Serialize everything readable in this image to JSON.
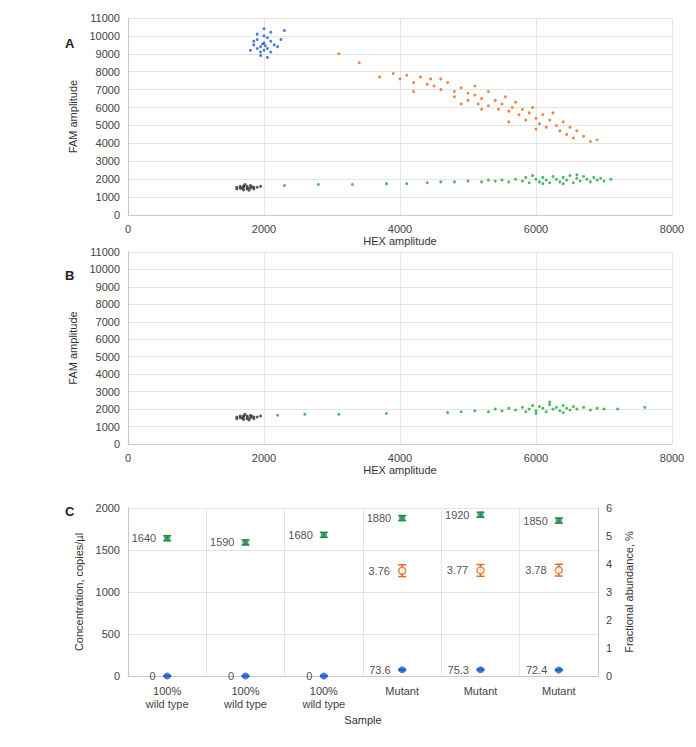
{
  "chart_data": [
    {
      "type": "scatter",
      "title": "A",
      "xlabel": "HEX amplitude",
      "ylabel": "FAM amplitude",
      "xlim": [
        0,
        8000
      ],
      "xticks": [
        0,
        2000,
        4000,
        6000,
        8000
      ],
      "ylim": [
        0,
        11000
      ],
      "yticks": [
        0,
        1000,
        2000,
        3000,
        4000,
        5000,
        6000,
        7000,
        8000,
        9000,
        10000,
        11000
      ],
      "grid": true,
      "series": [
        {
          "color": "#333333",
          "marker": "circle",
          "x": [
            1600,
            1650,
            1700,
            1750,
            1800,
            1850,
            1700,
            1750,
            1800,
            1650,
            1900,
            1600,
            1720,
            1780,
            1850,
            1950,
            1680,
            1820,
            1760,
            1700
          ],
          "values": [
            1450,
            1500,
            1550,
            1600,
            1500,
            1550,
            1400,
            1450,
            1650,
            1600,
            1550,
            1550,
            1700,
            1380,
            1450,
            1600,
            1480,
            1580,
            1520,
            1620
          ]
        },
        {
          "color": "#1f5fd0",
          "marker": "circle",
          "x": [
            1800,
            1850,
            1900,
            1950,
            2000,
            2050,
            2100,
            2000,
            1950,
            2050,
            2150,
            1900,
            2000,
            1850,
            2100,
            2200,
            1950,
            2050,
            2000,
            1900,
            2250,
            2100,
            1980,
            2020,
            2300
          ],
          "values": [
            9200,
            9500,
            9800,
            9400,
            9600,
            9300,
            9700,
            10000,
            9100,
            9900,
            9500,
            9300,
            9200,
            9700,
            10200,
            9400,
            8900,
            8800,
            10400,
            10100,
            9800,
            9100,
            9550,
            9450,
            10300
          ]
        },
        {
          "color": "#e36a1e",
          "marker": "circle",
          "x": [
            3100,
            3400,
            3700,
            3900,
            4000,
            4100,
            4200,
            4300,
            4400,
            4450,
            4500,
            4600,
            4700,
            4800,
            4800,
            4900,
            5000,
            5000,
            5100,
            5150,
            5200,
            5300,
            5300,
            5400,
            5450,
            5500,
            5550,
            5600,
            5650,
            5700,
            5750,
            5800,
            5850,
            5900,
            5950,
            6000,
            6050,
            6100,
            6150,
            6200,
            6250,
            6300,
            6350,
            6400,
            6450,
            6500,
            6550,
            6600,
            6700,
            6800,
            6900,
            5600,
            4200,
            4600,
            5100,
            6000,
            5200,
            4900
          ],
          "values": [
            9000,
            8500,
            7700,
            7900,
            7600,
            7800,
            7400,
            7700,
            7300,
            7600,
            7200,
            7000,
            7400,
            6900,
            6600,
            7100,
            6800,
            6400,
            6700,
            6200,
            6500,
            6900,
            6100,
            6400,
            5900,
            6200,
            6600,
            5800,
            6000,
            6300,
            5600,
            5900,
            5300,
            5700,
            6000,
            5400,
            5100,
            5600,
            4900,
            5300,
            5700,
            5000,
            4700,
            5200,
            4500,
            4900,
            4300,
            4700,
            4400,
            4100,
            4200,
            5200,
            6900,
            7600,
            7200,
            4800,
            5900,
            6200
          ]
        },
        {
          "color": "#24a83a",
          "marker": "circle",
          "x": [
            2300,
            2800,
            3300,
            3800,
            4100,
            4400,
            4600,
            4800,
            5000,
            5200,
            5300,
            5400,
            5500,
            5600,
            5700,
            5800,
            5850,
            5900,
            6000,
            6050,
            6100,
            6150,
            6200,
            6250,
            6300,
            6350,
            6400,
            6450,
            6500,
            6550,
            6600,
            6650,
            6700,
            6750,
            6800,
            6850,
            6900,
            6950,
            7000,
            7100,
            6100,
            6400,
            5950,
            6600
          ],
          "values": [
            1650,
            1700,
            1700,
            1750,
            1750,
            1800,
            1850,
            1850,
            1900,
            1850,
            1950,
            1900,
            1950,
            1850,
            2000,
            1900,
            2100,
            1800,
            2000,
            1850,
            2100,
            1950,
            1800,
            2150,
            2000,
            1850,
            2100,
            1950,
            2200,
            1800,
            2050,
            1900,
            2150,
            2000,
            1850,
            2100,
            1950,
            2050,
            1900,
            2000,
            1750,
            1750,
            2200,
            2250
          ]
        }
      ]
    },
    {
      "type": "scatter",
      "title": "B",
      "xlabel": "HEX amplitude",
      "ylabel": "FAM amplitude",
      "xlim": [
        0,
        8000
      ],
      "xticks": [
        0,
        2000,
        4000,
        6000,
        8000
      ],
      "ylim": [
        0,
        11000
      ],
      "yticks": [
        0,
        1000,
        2000,
        3000,
        4000,
        5000,
        6000,
        7000,
        8000,
        9000,
        10000,
        11000
      ],
      "grid": true,
      "series": [
        {
          "color": "#333333",
          "marker": "circle",
          "x": [
            1600,
            1650,
            1700,
            1750,
            1800,
            1850,
            1700,
            1750,
            1800,
            1650,
            1900,
            1600,
            1720,
            1780,
            1850,
            1950,
            1680,
            1820,
            1760,
            1700
          ],
          "values": [
            1450,
            1500,
            1550,
            1600,
            1500,
            1550,
            1400,
            1450,
            1650,
            1600,
            1550,
            1550,
            1700,
            1380,
            1450,
            1600,
            1480,
            1580,
            1520,
            1620
          ]
        },
        {
          "color": "#24a83a",
          "marker": "circle",
          "x": [
            2200,
            2600,
            3100,
            3800,
            4700,
            4900,
            5100,
            5300,
            5400,
            5500,
            5600,
            5700,
            5800,
            5850,
            5900,
            5950,
            6000,
            6050,
            6100,
            6150,
            6200,
            6250,
            6300,
            6350,
            6400,
            6450,
            6500,
            6550,
            6600,
            6700,
            6800,
            6900,
            7000,
            7200,
            7600,
            6200,
            6000,
            6400
          ],
          "values": [
            1650,
            1700,
            1700,
            1750,
            1800,
            1850,
            1900,
            1850,
            2000,
            1900,
            2050,
            1950,
            2100,
            1850,
            2000,
            2200,
            1900,
            2150,
            2050,
            1850,
            2250,
            2000,
            2100,
            1900,
            2200,
            2050,
            1950,
            2150,
            2000,
            2100,
            1950,
            2050,
            2000,
            2000,
            2100,
            2400,
            1750,
            1800
          ]
        }
      ]
    },
    {
      "type": "dot",
      "title": "C",
      "xlabel": "Sample",
      "ylabel": "Concentration, copies/µl",
      "y2label": "Fractional abundance, %",
      "categories": [
        "100%\nwild type",
        "100%\nwild type",
        "100%\nwild type",
        "Mutant",
        "Mutant",
        "Mutant"
      ],
      "ylim": [
        0,
        2000
      ],
      "yticks": [
        0,
        500,
        1000,
        1500,
        2000
      ],
      "y2lim": [
        0,
        6
      ],
      "y2ticks": [
        0,
        1,
        2,
        3,
        4,
        5,
        6
      ],
      "grid": true,
      "data_labels": true,
      "series": [
        {
          "color": "#1e8c4e",
          "marker": "square",
          "values": [
            1640,
            1590,
            1680,
            1880,
            1920,
            1850
          ],
          "error": [
            30,
            30,
            30,
            30,
            30,
            30
          ]
        },
        {
          "color": "#1f5fd0",
          "marker": "circle",
          "values": [
            0,
            0,
            0,
            73.6,
            75.3,
            72.4
          ],
          "error": [
            6,
            6,
            6,
            8,
            8,
            8
          ]
        },
        {
          "color": "#e36a1e",
          "marker": "open_circle",
          "axis": "y2",
          "values": [
            null,
            null,
            null,
            3.76,
            3.77,
            3.78
          ],
          "error": [
            null,
            null,
            null,
            0.21,
            0.21,
            0.21
          ]
        }
      ]
    }
  ]
}
